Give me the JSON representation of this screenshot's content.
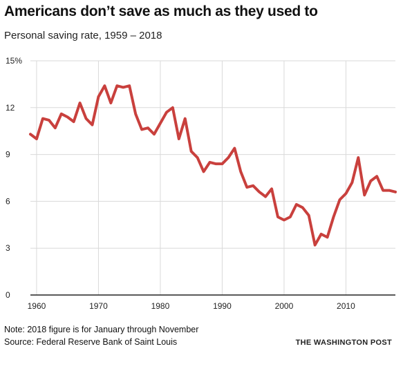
{
  "title": "Americans don’t save as much as they used to",
  "subtitle": "Personal saving rate, 1959 – 2018",
  "note": "Note: 2018 figure is for January through November",
  "source": "Source: Federal Reserve Bank of Saint Louis",
  "credit": "THE WASHINGTON POST",
  "colors": {
    "line": "#c9403d",
    "grid": "#d9d9d9",
    "axis": "#222222"
  },
  "chart_data": {
    "type": "line",
    "title": "Americans don’t save as much as they used to",
    "subtitle": "Personal saving rate, 1959 – 2018",
    "xlim": [
      1959,
      2018
    ],
    "ylim": [
      0,
      15
    ],
    "x_ticks": [
      1960,
      1970,
      1980,
      1990,
      2000,
      2010
    ],
    "x_tick_labels": [
      "1960",
      "1970",
      "1980",
      "1990",
      "2000",
      "2010"
    ],
    "y_ticks": [
      0,
      3,
      6,
      9,
      12,
      15
    ],
    "y_tick_labels": [
      "0",
      "3",
      "6",
      "9",
      "12",
      "15%"
    ],
    "grid": true,
    "x": [
      1959,
      1960,
      1961,
      1962,
      1963,
      1964,
      1965,
      1966,
      1967,
      1968,
      1969,
      1970,
      1971,
      1972,
      1973,
      1974,
      1975,
      1976,
      1977,
      1978,
      1979,
      1980,
      1981,
      1982,
      1983,
      1984,
      1985,
      1986,
      1987,
      1988,
      1989,
      1990,
      1991,
      1992,
      1993,
      1994,
      1995,
      1996,
      1997,
      1998,
      1999,
      2000,
      2001,
      2002,
      2003,
      2004,
      2005,
      2006,
      2007,
      2008,
      2009,
      2010,
      2011,
      2012,
      2013,
      2014,
      2015,
      2016,
      2017,
      2018
    ],
    "series": [
      {
        "values": [
          10.3,
          10.0,
          11.3,
          11.2,
          10.7,
          11.6,
          11.4,
          11.1,
          12.3,
          11.3,
          10.9,
          12.7,
          13.4,
          12.3,
          13.4,
          13.3,
          13.4,
          11.6,
          10.6,
          10.7,
          10.3,
          11.0,
          11.7,
          12.0,
          10.0,
          11.3,
          9.2,
          8.8,
          7.9,
          8.5,
          8.4,
          8.4,
          8.8,
          9.4,
          7.9,
          6.9,
          7.0,
          6.6,
          6.3,
          6.8,
          5.0,
          4.8,
          5.0,
          5.8,
          5.6,
          5.1,
          3.2,
          3.9,
          3.7,
          5.0,
          6.1,
          6.5,
          7.2,
          8.8,
          6.4,
          7.3,
          7.6,
          6.7,
          6.7,
          6.6
        ]
      }
    ]
  }
}
